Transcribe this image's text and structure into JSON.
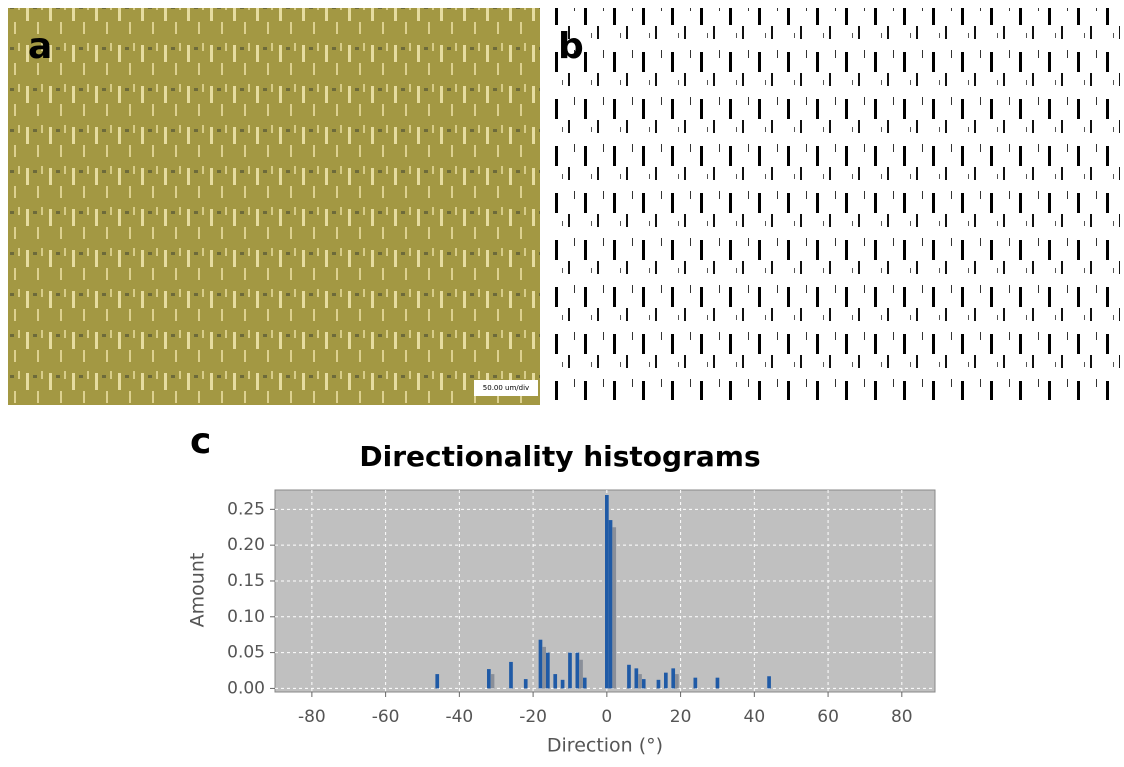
{
  "panels": {
    "a": "a",
    "b": "b",
    "c": "c",
    "scale_bar": "50.00 um/div"
  },
  "chart_data": {
    "type": "bar",
    "title": "Directionality histograms",
    "xlabel": "Direction (°)",
    "ylabel": "Amount",
    "xlim": [
      -90,
      89
    ],
    "ylim": [
      -0.005,
      0.277
    ],
    "xticks": [
      -80,
      -60,
      -40,
      -20,
      0,
      20,
      40,
      60,
      80
    ],
    "yticks": [
      {
        "value": 0,
        "label": "0.00"
      },
      {
        "value": 0.05,
        "label": "0.05"
      },
      {
        "value": 0.1,
        "label": "0.10"
      },
      {
        "value": 0.15,
        "label": "0.15"
      },
      {
        "value": 0.2,
        "label": "0.20"
      },
      {
        "value": 0.25,
        "label": "0.25"
      }
    ],
    "grid": true,
    "background": "#c0c0c0",
    "series": [
      {
        "color": "#1f5aa6",
        "x": [
          -46,
          -32,
          -26,
          -22,
          -18,
          -16,
          -14,
          -12,
          -10,
          -8,
          -6,
          0,
          1,
          6,
          8,
          10,
          14,
          16,
          18,
          24,
          30,
          44
        ],
        "values": [
          0.02,
          0.027,
          0.037,
          0.013,
          0.068,
          0.05,
          0.02,
          0.012,
          0.05,
          0.05,
          0.015,
          0.27,
          0.235,
          0.033,
          0.028,
          0.013,
          0.012,
          0.022,
          0.028,
          0.015,
          0.015,
          0.017
        ]
      },
      {
        "color": "#8a8f99",
        "x": [
          -31,
          -17,
          -7,
          2,
          9,
          19
        ],
        "values": [
          0.02,
          0.058,
          0.04,
          0.225,
          0.02,
          0.02
        ]
      }
    ]
  }
}
